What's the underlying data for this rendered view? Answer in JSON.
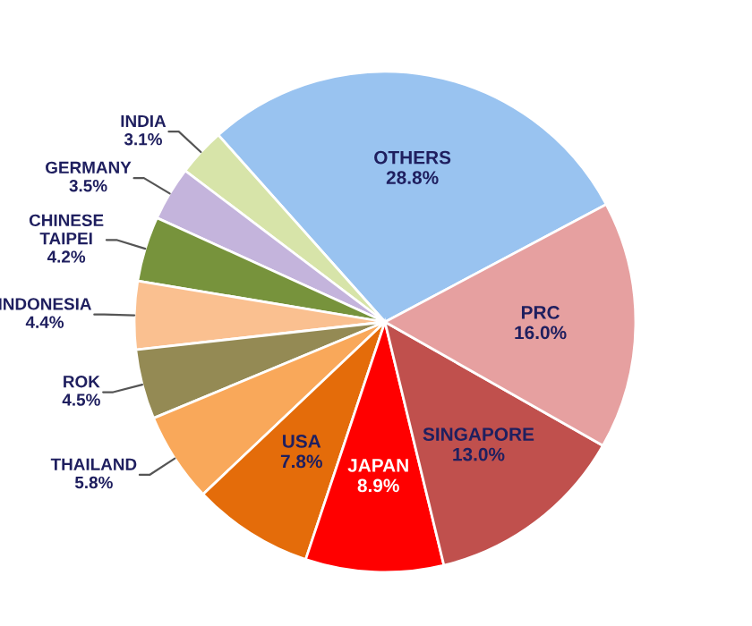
{
  "chart_data": {
    "type": "pie",
    "categories": [
      "OTHERS",
      "INDIA",
      "GERMANY",
      "CHINESE TAIPEI",
      "INDONESIA",
      "ROK",
      "THAILAND",
      "USA",
      "JAPAN",
      "SINGAPORE",
      "PRC"
    ],
    "values": [
      28.8,
      3.1,
      3.5,
      4.2,
      4.4,
      4.5,
      5.8,
      7.8,
      8.9,
      13.0,
      16.0
    ],
    "value_labels": [
      "28.8%",
      "3.1%",
      "3.5%",
      "4.2%",
      "4.4%",
      "4.5%",
      "5.8%",
      "7.8%",
      "8.9%",
      "13.0%",
      "16.0%"
    ],
    "colors": [
      "#99c3f0",
      "#d7e4a9",
      "#c4b4dc",
      "#77933c",
      "#fac090",
      "#948a54",
      "#f9a85a",
      "#e46c0a",
      "#ff0000",
      "#c0504d",
      "#e6a0a0"
    ],
    "legend": false
  }
}
